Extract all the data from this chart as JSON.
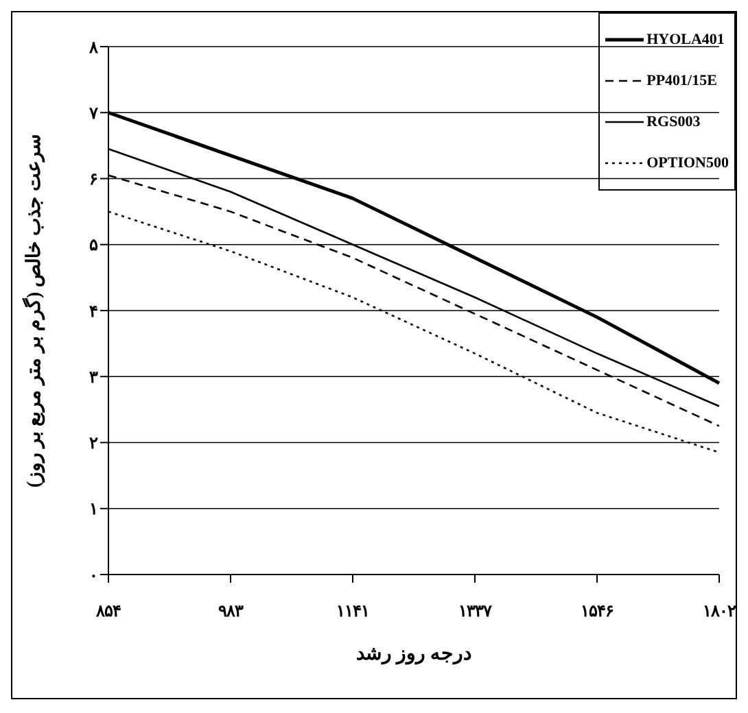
{
  "chart_data": {
    "type": "line",
    "xlabel": "درجه روز رشد",
    "ylabel": "سرعت جذب خالص (گرم بر متر مربع بر روز)",
    "categories": [
      "۸۵۴",
      "۹۸۳",
      "۱۱۴۱",
      "۱۳۳۷",
      "۱۵۴۶",
      "۱۸۰۲"
    ],
    "series": [
      {
        "name": "HYOLA401",
        "color": "#000000",
        "line_style": "solid",
        "values": [
          7.0,
          6.35,
          5.7,
          4.8,
          3.9,
          2.9
        ]
      },
      {
        "name": "PP401/15E",
        "color": "#000000",
        "line_style": "dashed",
        "values": [
          6.05,
          5.5,
          4.8,
          3.95,
          3.1,
          2.25
        ]
      },
      {
        "name": "RGS003",
        "color": "#000000",
        "line_style": "solid",
        "values": [
          6.45,
          5.8,
          5.0,
          4.2,
          3.35,
          2.55
        ]
      },
      {
        "name": "OPTION500",
        "color": "#000000",
        "line_style": "dotted",
        "values": [
          5.5,
          4.9,
          4.2,
          3.35,
          2.45,
          1.85
        ]
      }
    ],
    "ylim": [
      0,
      8
    ],
    "yticks": [
      {
        "value": 0,
        "label": "۰"
      },
      {
        "value": 1,
        "label": "۱"
      },
      {
        "value": 2,
        "label": "۲"
      },
      {
        "value": 3,
        "label": "۳"
      },
      {
        "value": 4,
        "label": "۴"
      },
      {
        "value": 5,
        "label": "۵"
      },
      {
        "value": 6,
        "label": "۶"
      },
      {
        "value": 7,
        "label": "۷"
      },
      {
        "value": 8,
        "label": "۸"
      }
    ],
    "grid": "y",
    "legend": "top right",
    "marker": "none"
  }
}
